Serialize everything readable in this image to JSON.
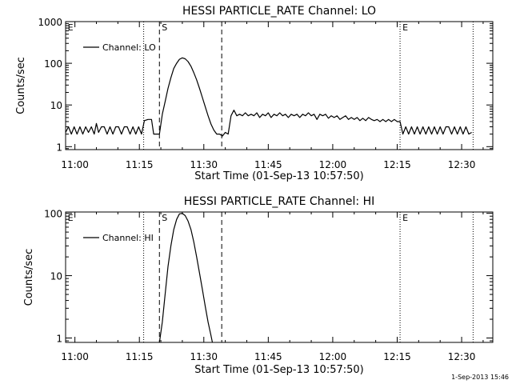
{
  "footer": {
    "timestamp": "1-Sep-2013 15:46"
  },
  "chart_data": [
    {
      "type": "line",
      "title": "HESSI PARTICLE_RATE Channel: LO",
      "xlabel": "Start Time (01-Sep-13 10:57:50)",
      "ylabel": "Counts/sec",
      "y_scale": "log",
      "ylim": [
        0.85,
        1000
      ],
      "xlim": [
        "10:57:50",
        "12:37:15"
      ],
      "x_ticks": [
        "11:00",
        "11:15",
        "11:30",
        "11:45",
        "12:00",
        "12:15",
        "12:30"
      ],
      "y_ticks": [
        "1",
        "10",
        "100",
        "1000"
      ],
      "legend": {
        "position": "top-left",
        "entries": [
          "Channel: LO"
        ]
      },
      "markers": [
        {
          "time": "11:16:00",
          "style": "dotted",
          "label": ""
        },
        {
          "time": "11:19:40",
          "style": "dashed",
          "label": "S"
        },
        {
          "time": "11:34:10",
          "style": "dashed",
          "label": ""
        },
        {
          "time": "12:15:40",
          "style": "dotted",
          "label": "E"
        },
        {
          "time": "12:32:40",
          "style": "dotted",
          "label": ""
        }
      ],
      "edge_labels": [
        {
          "time": "10:58:20",
          "label": "E"
        }
      ],
      "series": [
        {
          "name": "Channel: LO",
          "points": [
            [
              "10:57:50",
              2.2
            ],
            [
              "10:58:30",
              3.0
            ],
            [
              "10:59:10",
              2.0
            ],
            [
              "10:59:50",
              3.0
            ],
            [
              "11:00:30",
              2.0
            ],
            [
              "11:01:10",
              3.0
            ],
            [
              "11:01:50",
              2.0
            ],
            [
              "11:02:30",
              3.0
            ],
            [
              "11:03:10",
              2.2
            ],
            [
              "11:03:50",
              3.0
            ],
            [
              "11:04:30",
              2.0
            ],
            [
              "11:05:00",
              3.6
            ],
            [
              "11:05:30",
              2.2
            ],
            [
              "11:06:10",
              3.0
            ],
            [
              "11:06:50",
              3.0
            ],
            [
              "11:07:30",
              2.0
            ],
            [
              "11:08:10",
              3.0
            ],
            [
              "11:08:50",
              2.0
            ],
            [
              "11:09:30",
              3.0
            ],
            [
              "11:10:10",
              3.0
            ],
            [
              "11:10:50",
              2.0
            ],
            [
              "11:11:30",
              3.0
            ],
            [
              "11:12:10",
              3.0
            ],
            [
              "11:12:50",
              2.0
            ],
            [
              "11:13:30",
              3.0
            ],
            [
              "11:14:10",
              2.0
            ],
            [
              "11:14:50",
              3.0
            ],
            [
              "11:15:30",
              2.0
            ],
            [
              "11:16:10",
              4.2
            ],
            [
              "11:17:00",
              4.5
            ],
            [
              "11:17:50",
              4.5
            ],
            [
              "11:18:20",
              2.0
            ],
            [
              "11:19:10",
              2.0
            ],
            [
              "11:19:40",
              2.0
            ],
            [
              "11:20:20",
              6.0
            ],
            [
              "11:21:00",
              12
            ],
            [
              "11:21:40",
              25
            ],
            [
              "11:22:20",
              45
            ],
            [
              "11:23:00",
              75
            ],
            [
              "11:23:40",
              100
            ],
            [
              "11:24:20",
              125
            ],
            [
              "11:25:00",
              135
            ],
            [
              "11:25:40",
              128
            ],
            [
              "11:26:20",
              110
            ],
            [
              "11:27:00",
              85
            ],
            [
              "11:27:40",
              60
            ],
            [
              "11:28:20",
              40
            ],
            [
              "11:29:00",
              25
            ],
            [
              "11:29:40",
              15
            ],
            [
              "11:30:20",
              9
            ],
            [
              "11:31:00",
              5.5
            ],
            [
              "11:31:40",
              3.5
            ],
            [
              "11:32:20",
              2.5
            ],
            [
              "11:33:00",
              2.0
            ],
            [
              "11:33:40",
              2.0
            ],
            [
              "11:34:20",
              1.8
            ],
            [
              "11:35:00",
              2.2
            ],
            [
              "11:35:40",
              2.0
            ],
            [
              "11:36:20",
              5.5
            ],
            [
              "11:37:00",
              7.5
            ],
            [
              "11:37:40",
              5.5
            ],
            [
              "11:38:20",
              6.0
            ],
            [
              "11:39:00",
              5.5
            ],
            [
              "11:39:40",
              6.5
            ],
            [
              "11:40:20",
              5.5
            ],
            [
              "11:41:00",
              6.0
            ],
            [
              "11:41:40",
              5.5
            ],
            [
              "11:42:20",
              6.5
            ],
            [
              "11:43:00",
              5.0
            ],
            [
              "11:43:40",
              6.0
            ],
            [
              "11:44:20",
              5.5
            ],
            [
              "11:45:00",
              6.5
            ],
            [
              "11:45:40",
              5.0
            ],
            [
              "11:46:20",
              6.0
            ],
            [
              "11:47:00",
              5.5
            ],
            [
              "11:47:40",
              6.5
            ],
            [
              "11:48:20",
              5.5
            ],
            [
              "11:49:00",
              6.0
            ],
            [
              "11:49:40",
              5.0
            ],
            [
              "11:50:20",
              6.0
            ],
            [
              "11:51:00",
              5.5
            ],
            [
              "11:51:40",
              6.0
            ],
            [
              "11:52:20",
              5.0
            ],
            [
              "11:53:00",
              6.0
            ],
            [
              "11:53:40",
              5.5
            ],
            [
              "11:54:20",
              6.5
            ],
            [
              "11:55:00",
              5.5
            ],
            [
              "11:55:40",
              6.0
            ],
            [
              "11:56:20",
              4.5
            ],
            [
              "11:57:00",
              6.0
            ],
            [
              "11:57:40",
              5.5
            ],
            [
              "11:58:20",
              6.0
            ],
            [
              "11:59:00",
              4.8
            ],
            [
              "11:59:40",
              5.5
            ],
            [
              "12:00:20",
              5.0
            ],
            [
              "12:01:00",
              5.5
            ],
            [
              "12:01:40",
              4.5
            ],
            [
              "12:02:20",
              5.0
            ],
            [
              "12:03:00",
              5.5
            ],
            [
              "12:03:40",
              4.5
            ],
            [
              "12:04:20",
              5.0
            ],
            [
              "12:05:00",
              4.5
            ],
            [
              "12:05:40",
              5.0
            ],
            [
              "12:06:20",
              4.2
            ],
            [
              "12:07:00",
              4.8
            ],
            [
              "12:07:40",
              4.2
            ],
            [
              "12:08:20",
              5.0
            ],
            [
              "12:09:00",
              4.5
            ],
            [
              "12:09:40",
              4.2
            ],
            [
              "12:10:20",
              4.5
            ],
            [
              "12:11:00",
              4.0
            ],
            [
              "12:11:40",
              4.5
            ],
            [
              "12:12:20",
              4.0
            ],
            [
              "12:13:00",
              4.5
            ],
            [
              "12:13:40",
              4.0
            ],
            [
              "12:14:20",
              4.5
            ],
            [
              "12:15:00",
              4.0
            ],
            [
              "12:15:40",
              4.0
            ],
            [
              "12:16:20",
              2.0
            ],
            [
              "12:17:00",
              3.0
            ],
            [
              "12:17:40",
              2.0
            ],
            [
              "12:18:20",
              3.0
            ],
            [
              "12:19:00",
              2.0
            ],
            [
              "12:19:40",
              3.0
            ],
            [
              "12:20:20",
              2.0
            ],
            [
              "12:21:00",
              3.0
            ],
            [
              "12:21:40",
              2.0
            ],
            [
              "12:22:20",
              3.0
            ],
            [
              "12:23:00",
              2.0
            ],
            [
              "12:23:40",
              3.0
            ],
            [
              "12:24:20",
              2.0
            ],
            [
              "12:25:00",
              3.0
            ],
            [
              "12:25:40",
              2.0
            ],
            [
              "12:26:20",
              3.0
            ],
            [
              "12:27:00",
              3.0
            ],
            [
              "12:27:40",
              2.0
            ],
            [
              "12:28:20",
              3.0
            ],
            [
              "12:29:00",
              2.0
            ],
            [
              "12:29:40",
              3.0
            ],
            [
              "12:30:20",
              2.0
            ],
            [
              "12:31:00",
              3.0
            ],
            [
              "12:31:40",
              2.0
            ],
            [
              "12:32:20",
              2.2
            ]
          ]
        }
      ]
    },
    {
      "type": "line",
      "title": "HESSI PARTICLE_RATE Channel: HI",
      "xlabel": "Start Time (01-Sep-13 10:57:50)",
      "ylabel": "Counts/sec",
      "y_scale": "log",
      "ylim": [
        0.85,
        105
      ],
      "xlim": [
        "10:57:50",
        "12:37:15"
      ],
      "x_ticks": [
        "11:00",
        "11:15",
        "11:30",
        "11:45",
        "12:00",
        "12:15",
        "12:30"
      ],
      "y_ticks": [
        "1",
        "10",
        "100"
      ],
      "legend": {
        "position": "top-left",
        "entries": [
          "Channel: HI"
        ]
      },
      "markers": [
        {
          "time": "11:16:00",
          "style": "dotted",
          "label": ""
        },
        {
          "time": "11:19:40",
          "style": "dashed",
          "label": "S"
        },
        {
          "time": "11:34:10",
          "style": "dashed",
          "label": ""
        },
        {
          "time": "12:15:40",
          "style": "dotted",
          "label": "E"
        },
        {
          "time": "12:32:40",
          "style": "dotted",
          "label": ""
        }
      ],
      "edge_labels": [
        {
          "time": "10:58:20",
          "label": "E"
        }
      ],
      "series": [
        {
          "name": "Channel: HI",
          "points": [
            [
              "11:19:40",
              0.85
            ],
            [
              "11:20:20",
              1.8
            ],
            [
              "11:21:00",
              5
            ],
            [
              "11:21:40",
              14
            ],
            [
              "11:22:20",
              30
            ],
            [
              "11:23:00",
              55
            ],
            [
              "11:23:40",
              80
            ],
            [
              "11:24:20",
              98
            ],
            [
              "11:25:00",
              100
            ],
            [
              "11:25:40",
              92
            ],
            [
              "11:26:20",
              75
            ],
            [
              "11:27:00",
              55
            ],
            [
              "11:27:40",
              35
            ],
            [
              "11:28:20",
              20
            ],
            [
              "11:29:00",
              11
            ],
            [
              "11:29:40",
              6
            ],
            [
              "11:30:20",
              3.2
            ],
            [
              "11:31:00",
              1.8
            ],
            [
              "11:31:40",
              1.1
            ],
            [
              "11:32:00",
              0.85
            ]
          ]
        }
      ]
    }
  ]
}
